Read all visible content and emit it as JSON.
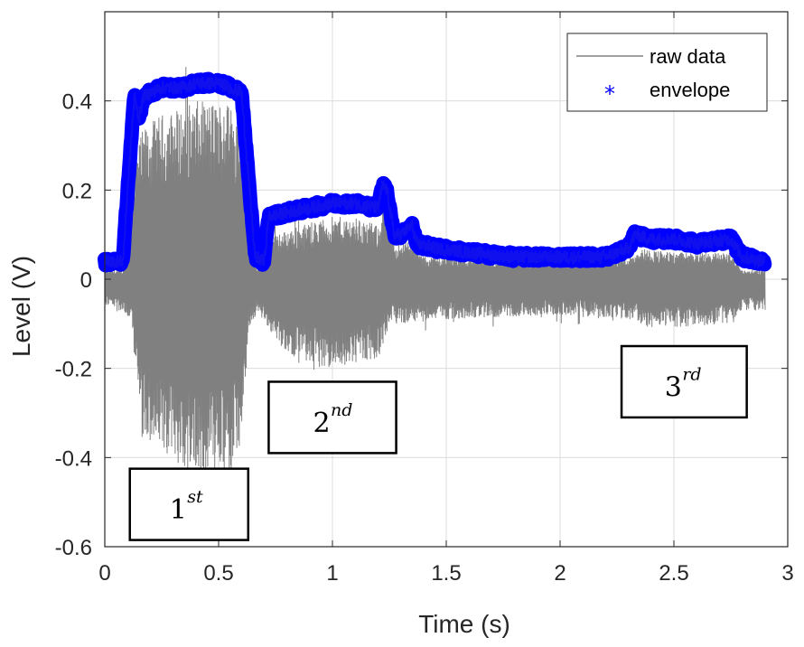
{
  "chart_data": {
    "type": "line",
    "xlabel": "Time (s)",
    "ylabel": "Level (V)",
    "xlim": [
      0,
      3
    ],
    "ylim": [
      -0.6,
      0.6
    ],
    "xticks": [
      0,
      0.5,
      1,
      1.5,
      2,
      2.5,
      3
    ],
    "xtick_labels": [
      "0",
      "0.5",
      "1",
      "1.5",
      "2",
      "2.5",
      "3"
    ],
    "yticks": [
      -0.6,
      -0.4,
      -0.2,
      0,
      0.2,
      0.4
    ],
    "ytick_labels": [
      "-0.6",
      "-0.4",
      "-0.2",
      "0",
      "0.2",
      "0.4"
    ],
    "grid": true,
    "legend_position": "top-right",
    "series": [
      {
        "name": "raw data",
        "color": "#808080",
        "style": "line",
        "upper_profile": {
          "t": [
            0,
            0.08,
            0.12,
            0.17,
            0.25,
            0.4,
            0.55,
            0.6,
            0.63,
            0.67,
            0.7,
            0.75,
            0.85,
            1.0,
            1.1,
            1.2,
            1.23,
            1.27,
            1.33,
            1.4,
            1.6,
            2.0,
            2.3,
            2.35,
            2.5,
            2.75,
            2.8,
            2.9
          ],
          "v": [
            0.02,
            0.02,
            0.26,
            0.34,
            0.37,
            0.4,
            0.4,
            0.38,
            0.14,
            0.02,
            0.06,
            0.1,
            0.12,
            0.14,
            0.14,
            0.12,
            0.18,
            0.08,
            0.09,
            0.05,
            0.05,
            0.04,
            0.05,
            0.07,
            0.06,
            0.06,
            0.02,
            0.02
          ]
        },
        "lower_profile": {
          "t": [
            0,
            0.08,
            0.12,
            0.16,
            0.25,
            0.4,
            0.55,
            0.6,
            0.63,
            0.67,
            0.7,
            0.8,
            0.95,
            1.1,
            1.2,
            1.25,
            1.3,
            1.5,
            2.0,
            2.3,
            2.4,
            2.75,
            2.8,
            2.9
          ],
          "v": [
            -0.06,
            -0.07,
            -0.12,
            -0.36,
            -0.4,
            -0.44,
            -0.44,
            -0.38,
            -0.12,
            -0.07,
            -0.1,
            -0.17,
            -0.2,
            -0.19,
            -0.18,
            -0.1,
            -0.1,
            -0.09,
            -0.08,
            -0.09,
            -0.11,
            -0.1,
            -0.07,
            -0.07
          ]
        }
      },
      {
        "name": "envelope",
        "color": "#0000ff",
        "style": "marker-*",
        "profile": {
          "t": [
            0,
            0.08,
            0.1,
            0.13,
            0.15,
            0.17,
            0.25,
            0.35,
            0.4,
            0.5,
            0.6,
            0.62,
            0.66,
            0.7,
            0.72,
            0.8,
            0.9,
            1.0,
            1.1,
            1.2,
            1.22,
            1.24,
            1.27,
            1.3,
            1.35,
            1.37,
            1.45,
            1.6,
            1.8,
            2.0,
            2.2,
            2.3,
            2.33,
            2.4,
            2.5,
            2.6,
            2.75,
            2.8,
            2.9
          ],
          "v": [
            0.04,
            0.04,
            0.2,
            0.41,
            0.36,
            0.41,
            0.43,
            0.43,
            0.44,
            0.44,
            0.42,
            0.3,
            0.05,
            0.04,
            0.14,
            0.15,
            0.16,
            0.17,
            0.17,
            0.16,
            0.21,
            0.2,
            0.1,
            0.1,
            0.12,
            0.08,
            0.07,
            0.06,
            0.05,
            0.05,
            0.05,
            0.07,
            0.1,
            0.09,
            0.09,
            0.08,
            0.09,
            0.05,
            0.04
          ]
        }
      }
    ],
    "annotations": [
      {
        "base": "1",
        "sup": "st",
        "x0": 0.11,
        "x1": 0.63,
        "y0": -0.425,
        "y1": -0.585
      },
      {
        "base": "2",
        "sup": "nd",
        "x0": 0.72,
        "x1": 1.28,
        "y0": -0.23,
        "y1": -0.39
      },
      {
        "base": "3",
        "sup": "rd",
        "x0": 2.27,
        "x1": 2.82,
        "y0": -0.15,
        "y1": -0.31
      }
    ]
  }
}
